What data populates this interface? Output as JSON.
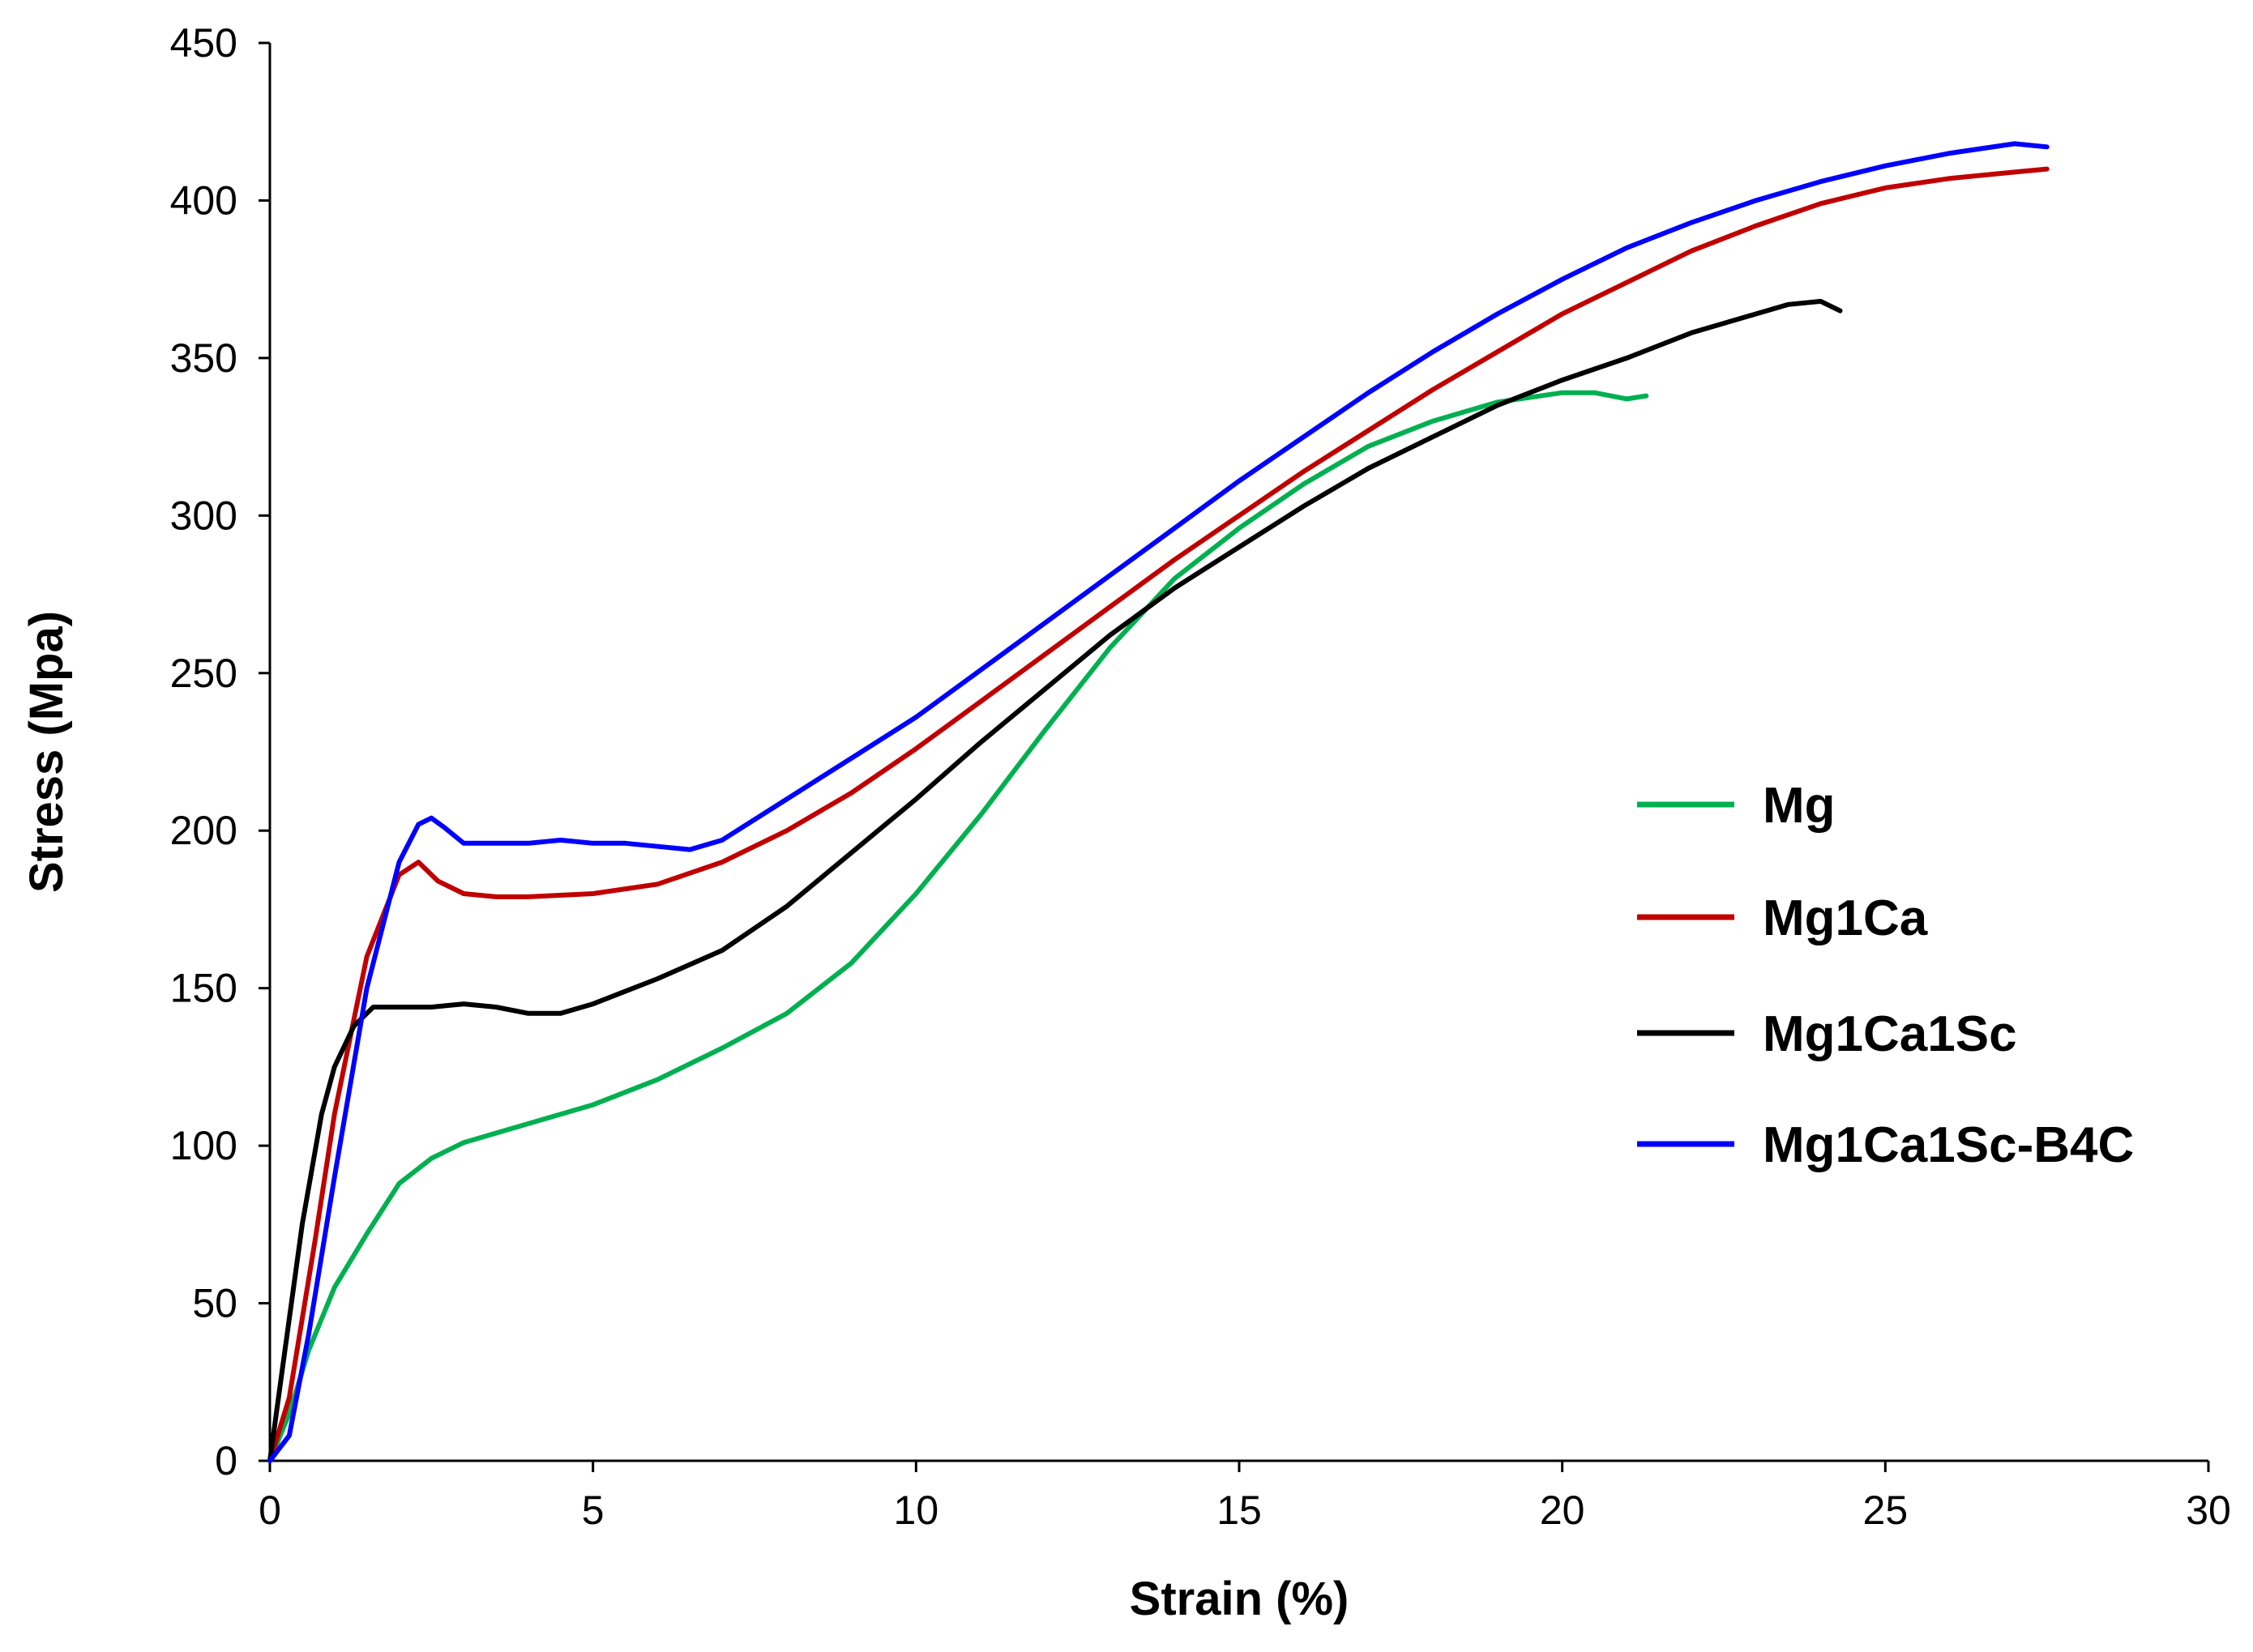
{
  "chart_data": {
    "type": "line",
    "title": "",
    "xlabel": "Strain (%)",
    "ylabel": "Stress (Mpa)",
    "xlim": [
      0,
      30
    ],
    "ylim": [
      0,
      450
    ],
    "xticks": [
      0,
      5,
      10,
      15,
      20,
      25,
      30
    ],
    "yticks": [
      0,
      50,
      100,
      150,
      200,
      250,
      300,
      350,
      400,
      450
    ],
    "legend_position": "right-middle",
    "grid": false,
    "series": [
      {
        "name": "Mg",
        "color": "#00b050",
        "x": [
          0,
          0.3,
          0.6,
          1.0,
          1.5,
          2.0,
          2.5,
          3.0,
          4.0,
          5.0,
          6.0,
          7.0,
          8.0,
          9.0,
          10.0,
          11.0,
          12.0,
          13.0,
          14.0,
          15.0,
          16.0,
          17.0,
          18.0,
          19.0,
          20.0,
          20.5,
          21.0,
          21.3
        ],
        "y": [
          0,
          15,
          35,
          55,
          72,
          88,
          96,
          101,
          107,
          113,
          121,
          131,
          142,
          158,
          180,
          205,
          232,
          258,
          280,
          296,
          310,
          322,
          330,
          336,
          339,
          339,
          337,
          338
        ]
      },
      {
        "name": "Mg1Ca",
        "color": "#c00000",
        "x": [
          0,
          0.3,
          0.7,
          1.0,
          1.5,
          2.0,
          2.3,
          2.6,
          3.0,
          3.5,
          4.0,
          5.0,
          6.0,
          7.0,
          8.0,
          9.0,
          10.0,
          11.0,
          12.0,
          13.0,
          14.0,
          15.0,
          16.0,
          17.0,
          18.0,
          19.0,
          20.0,
          21.0,
          22.0,
          23.0,
          24.0,
          25.0,
          26.0,
          27.0,
          27.5
        ],
        "y": [
          0,
          20,
          70,
          110,
          160,
          186,
          190,
          184,
          180,
          179,
          179,
          180,
          183,
          190,
          200,
          212,
          226,
          241,
          256,
          271,
          286,
          300,
          314,
          327,
          340,
          352,
          364,
          374,
          384,
          392,
          399,
          404,
          407,
          409,
          410
        ]
      },
      {
        "name": "Mg1Ca1Sc",
        "color": "#000000",
        "x": [
          0,
          0.2,
          0.5,
          0.8,
          1.0,
          1.3,
          1.6,
          2.0,
          2.5,
          3.0,
          3.5,
          4.0,
          4.5,
          5.0,
          6.0,
          7.0,
          8.0,
          9.0,
          10.0,
          11.0,
          12.0,
          13.0,
          14.0,
          15.0,
          16.0,
          17.0,
          18.0,
          19.0,
          20.0,
          21.0,
          22.0,
          23.0,
          23.5,
          24.0,
          24.3
        ],
        "y": [
          0,
          30,
          75,
          110,
          125,
          138,
          144,
          144,
          144,
          145,
          144,
          142,
          142,
          145,
          153,
          162,
          176,
          193,
          210,
          228,
          245,
          262,
          277,
          290,
          303,
          315,
          325,
          335,
          343,
          350,
          358,
          364,
          367,
          368,
          365
        ]
      },
      {
        "name": "Mg1Ca1Sc-B4C",
        "color": "#0000ff",
        "x": [
          0,
          0.3,
          0.6,
          1.0,
          1.5,
          2.0,
          2.3,
          2.5,
          2.7,
          3.0,
          3.5,
          4.0,
          4.5,
          5.0,
          5.5,
          6.0,
          6.5,
          7.0,
          8.0,
          9.0,
          10.0,
          11.0,
          12.0,
          13.0,
          14.0,
          15.0,
          16.0,
          17.0,
          18.0,
          19.0,
          20.0,
          21.0,
          22.0,
          23.0,
          24.0,
          25.0,
          26.0,
          27.0,
          27.5
        ],
        "y": [
          0,
          8,
          40,
          90,
          150,
          190,
          202,
          204,
          201,
          196,
          196,
          196,
          197,
          196,
          196,
          195,
          194,
          197,
          210,
          223,
          236,
          251,
          266,
          281,
          296,
          311,
          325,
          339,
          352,
          364,
          375,
          385,
          393,
          400,
          406,
          411,
          415,
          418,
          417
        ]
      }
    ]
  }
}
